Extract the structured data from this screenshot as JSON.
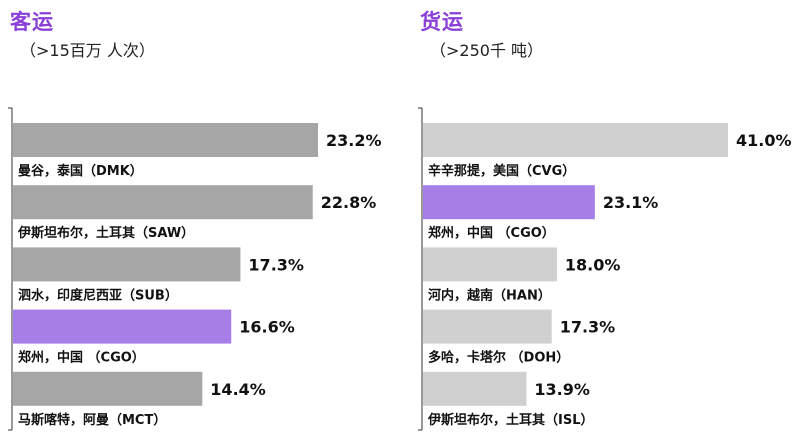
{
  "chart_data": [
    {
      "type": "bar",
      "orientation": "horizontal",
      "title": "客运",
      "subtitle": "（>15百万 人次）",
      "categories": [
        "曼谷，泰国（DMK）",
        "伊斯坦布尔，土耳其（SAW）",
        "泗水，印度尼西亚（SUB）",
        "郑州，中国 （CGO）",
        "马斯喀特，阿曼（MCT）"
      ],
      "values": [
        23.2,
        22.8,
        17.3,
        16.6,
        14.4
      ],
      "data_labels": [
        "23.2%",
        "22.8%",
        "17.3%",
        "16.6%",
        "14.4%"
      ],
      "highlight_index": 3,
      "base_color": "#a6a6a6",
      "highlight_color": "#a77de8",
      "xlim": [
        0,
        23.2
      ]
    },
    {
      "type": "bar",
      "orientation": "horizontal",
      "title": "货运",
      "subtitle": "（>250千 吨）",
      "categories": [
        "辛辛那提，美国（CVG）",
        "郑州，中国 （CGO）",
        "河内，越南（HAN）",
        "多哈，卡塔尔 （DOH）",
        "伊斯坦布尔，土耳其（ISL）"
      ],
      "values": [
        41.0,
        23.1,
        18.0,
        17.3,
        13.9
      ],
      "data_labels": [
        "41.0%",
        "23.1%",
        "18.0%",
        "17.3%",
        "13.9%"
      ],
      "highlight_index": 1,
      "base_color": "#d0d0d0",
      "highlight_color": "#a77de8",
      "xlim": [
        0,
        41.0
      ]
    }
  ]
}
